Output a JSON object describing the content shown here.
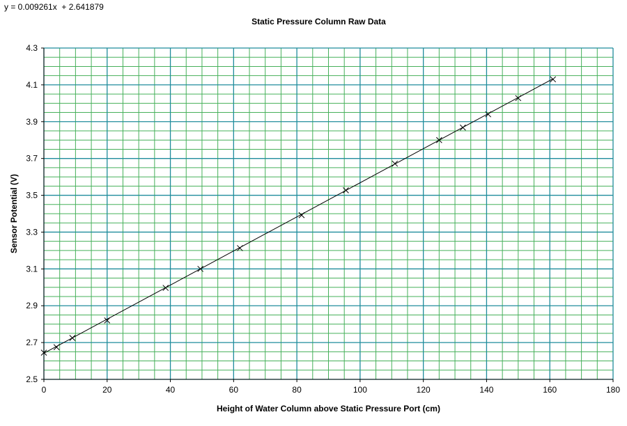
{
  "equation_label": "y = 0.009261x  + 2.641879",
  "colors": {
    "grid_major": "#1f8c9c",
    "grid_minor": "#46b05a",
    "line": "#000000",
    "marker": "#000000",
    "axis": "#000000"
  },
  "chart_data": {
    "type": "scatter",
    "title": "Static Pressure Column Raw Data",
    "xlabel": "Height of Water Column above Static Pressure Port (cm)",
    "ylabel": "Sensor Potential  (V)",
    "xlim": [
      0,
      180
    ],
    "ylim": [
      2.5,
      4.3
    ],
    "x_ticks": [
      0,
      20,
      40,
      60,
      80,
      100,
      120,
      140,
      160,
      180
    ],
    "x_tick_labels": [
      "0",
      "20",
      "40",
      "60",
      "80",
      "100",
      "120",
      "140",
      "160",
      "180"
    ],
    "y_ticks": [
      2.5,
      2.7,
      2.9,
      3.1,
      3.3,
      3.5,
      3.7,
      3.9,
      4.1,
      4.3
    ],
    "y_tick_labels": [
      "2.5",
      "2.7",
      "2.9",
      "3.1",
      "3.3",
      "3.5",
      "3.7",
      "3.9",
      "4.1",
      "4.3"
    ],
    "grid": true,
    "legend": "none",
    "marker": "x",
    "series": [
      {
        "x": [
          0,
          4,
          9,
          20,
          38.5,
          49.5,
          62,
          81.5,
          95.5,
          111,
          125,
          132.5,
          140.5,
          150,
          161
        ],
        "y": [
          2.645,
          2.675,
          2.725,
          2.82,
          2.997,
          3.1,
          3.213,
          3.392,
          3.527,
          3.672,
          3.8,
          3.868,
          3.94,
          4.028,
          4.13
        ]
      }
    ],
    "trendline": {
      "type": "linear",
      "slope": 0.009261,
      "intercept": 2.641879,
      "x_range": [
        0,
        161
      ]
    }
  }
}
